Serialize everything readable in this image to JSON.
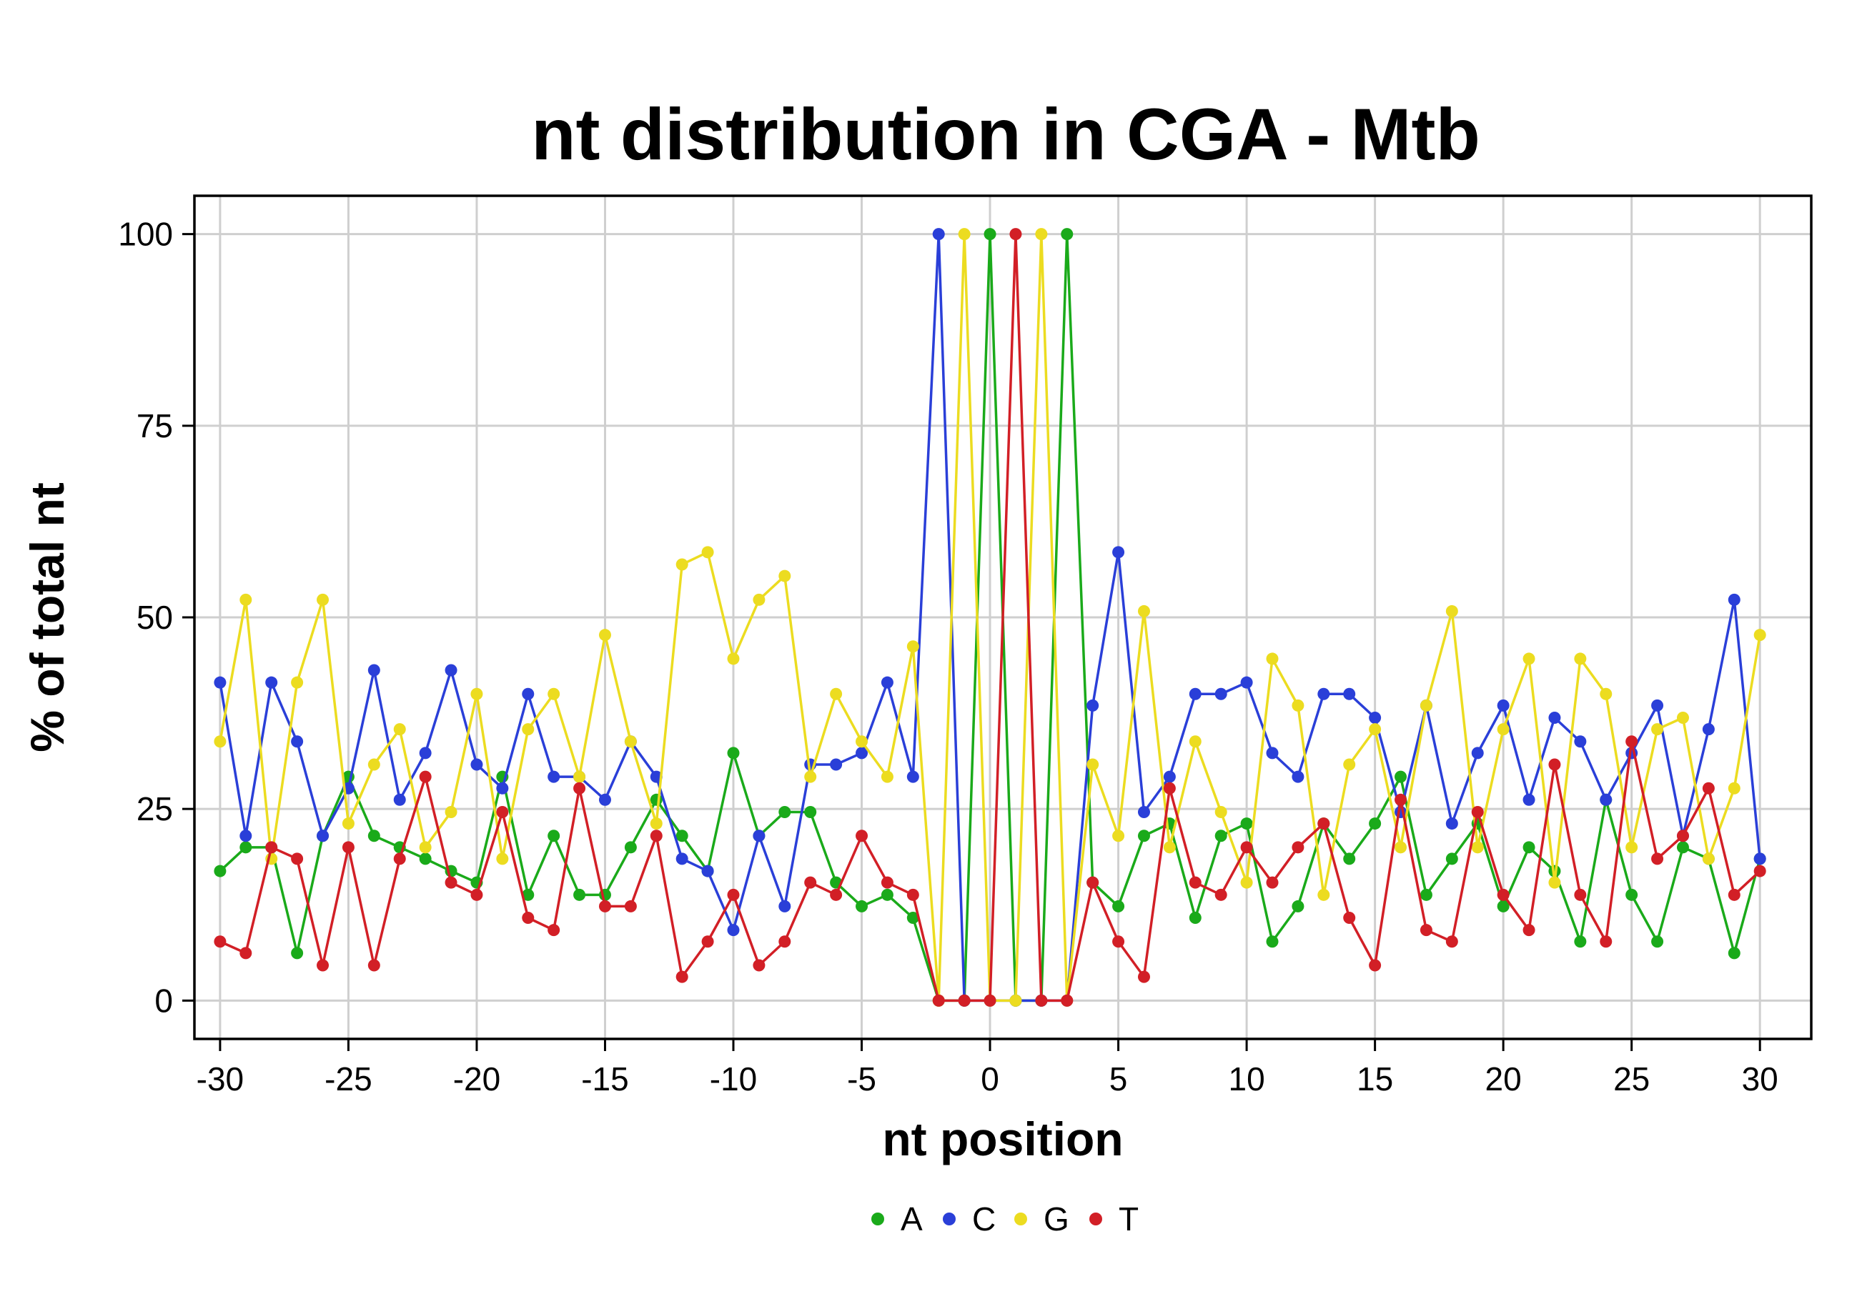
{
  "chart_data": {
    "type": "line",
    "title": "nt distribution in CGA - Mtb",
    "xlabel": "nt position",
    "ylabel": "% of total nt",
    "xlim": [
      -31,
      32
    ],
    "ylim": [
      -5,
      105
    ],
    "xticks": [
      -30,
      -25,
      -20,
      -15,
      -10,
      -5,
      0,
      5,
      10,
      15,
      20,
      25,
      30
    ],
    "yticks": [
      0,
      25,
      50,
      75,
      100
    ],
    "grid": true,
    "legend_position": "bottom",
    "x": [
      -30,
      -29,
      -28,
      -27,
      -26,
      -25,
      -24,
      -23,
      -22,
      -21,
      -20,
      -19,
      -18,
      -17,
      -16,
      -15,
      -14,
      -13,
      -12,
      -11,
      -10,
      -9,
      -8,
      -7,
      -6,
      -5,
      -4,
      -3,
      -2,
      -1,
      0,
      1,
      2,
      3,
      4,
      5,
      6,
      7,
      8,
      9,
      10,
      11,
      12,
      13,
      14,
      15,
      16,
      17,
      18,
      19,
      20,
      21,
      22,
      23,
      24,
      25,
      26,
      27,
      28,
      29,
      30
    ],
    "series": [
      {
        "name": "A",
        "color": "#1aaa1a",
        "values": [
          16.9,
          20,
          20,
          6.2,
          21.5,
          29.2,
          21.5,
          20,
          18.5,
          16.9,
          15.4,
          29.2,
          13.8,
          21.5,
          13.8,
          13.8,
          20,
          26.2,
          21.5,
          16.9,
          32.3,
          21.5,
          24.6,
          24.6,
          15.4,
          12.3,
          13.8,
          10.8,
          0,
          0,
          100,
          0,
          0,
          100,
          15.4,
          12.3,
          21.5,
          23.1,
          10.8,
          21.5,
          23.1,
          7.7,
          12.3,
          23.1,
          18.5,
          23.1,
          29.2,
          13.8,
          18.5,
          23.1,
          12.3,
          20,
          16.9,
          7.7,
          26.2,
          13.8,
          7.7,
          20,
          18.5,
          6.2,
          18.5
        ]
      },
      {
        "name": "C",
        "color": "#2a3fd8",
        "values": [
          41.5,
          21.5,
          41.5,
          33.8,
          21.5,
          27.7,
          43.1,
          26.2,
          32.3,
          43.1,
          30.8,
          27.7,
          40,
          29.2,
          29.2,
          26.2,
          33.8,
          29.2,
          18.5,
          16.9,
          9.2,
          21.5,
          12.3,
          30.8,
          30.8,
          32.3,
          41.5,
          29.2,
          100,
          0,
          0,
          0,
          0,
          0,
          38.5,
          58.5,
          24.6,
          29.2,
          40,
          40,
          41.5,
          32.3,
          29.2,
          40,
          40,
          36.9,
          24.6,
          38.5,
          23.1,
          32.3,
          38.5,
          26.2,
          36.9,
          33.8,
          26.2,
          32.3,
          38.5,
          21.5,
          35.4,
          52.3,
          18.5
        ]
      },
      {
        "name": "G",
        "color": "#ecdc20",
        "values": [
          33.8,
          52.3,
          18.5,
          41.5,
          52.3,
          23.1,
          30.8,
          35.4,
          20,
          24.6,
          40,
          18.5,
          35.4,
          40,
          29.2,
          47.7,
          33.8,
          23.1,
          56.9,
          58.5,
          44.6,
          52.3,
          55.4,
          29.2,
          40,
          33.8,
          29.2,
          46.2,
          0,
          100,
          0,
          0,
          100,
          0,
          30.8,
          21.5,
          50.8,
          20,
          33.8,
          24.6,
          15.4,
          44.6,
          38.5,
          13.8,
          30.8,
          35.4,
          20,
          38.5,
          50.8,
          20,
          35.4,
          44.6,
          15.4,
          44.6,
          40,
          20,
          35.4,
          36.9,
          18.5,
          27.7,
          47.7
        ]
      },
      {
        "name": "T",
        "color": "#d21f26",
        "values": [
          7.7,
          6.2,
          20,
          18.5,
          4.6,
          20,
          4.6,
          18.5,
          29.2,
          15.4,
          13.8,
          24.6,
          10.8,
          9.2,
          27.7,
          12.3,
          12.3,
          21.5,
          3.1,
          7.7,
          13.8,
          4.6,
          7.7,
          15.4,
          13.8,
          21.5,
          15.4,
          13.8,
          0,
          0,
          0,
          100,
          0,
          0,
          15.4,
          7.7,
          3.1,
          27.7,
          15.4,
          13.8,
          20,
          15.4,
          20,
          23.1,
          10.8,
          4.6,
          26.2,
          9.2,
          7.7,
          24.6,
          13.8,
          9.2,
          30.8,
          13.8,
          7.7,
          33.8,
          18.5,
          21.5,
          27.7,
          13.8,
          16.9
        ]
      }
    ]
  }
}
